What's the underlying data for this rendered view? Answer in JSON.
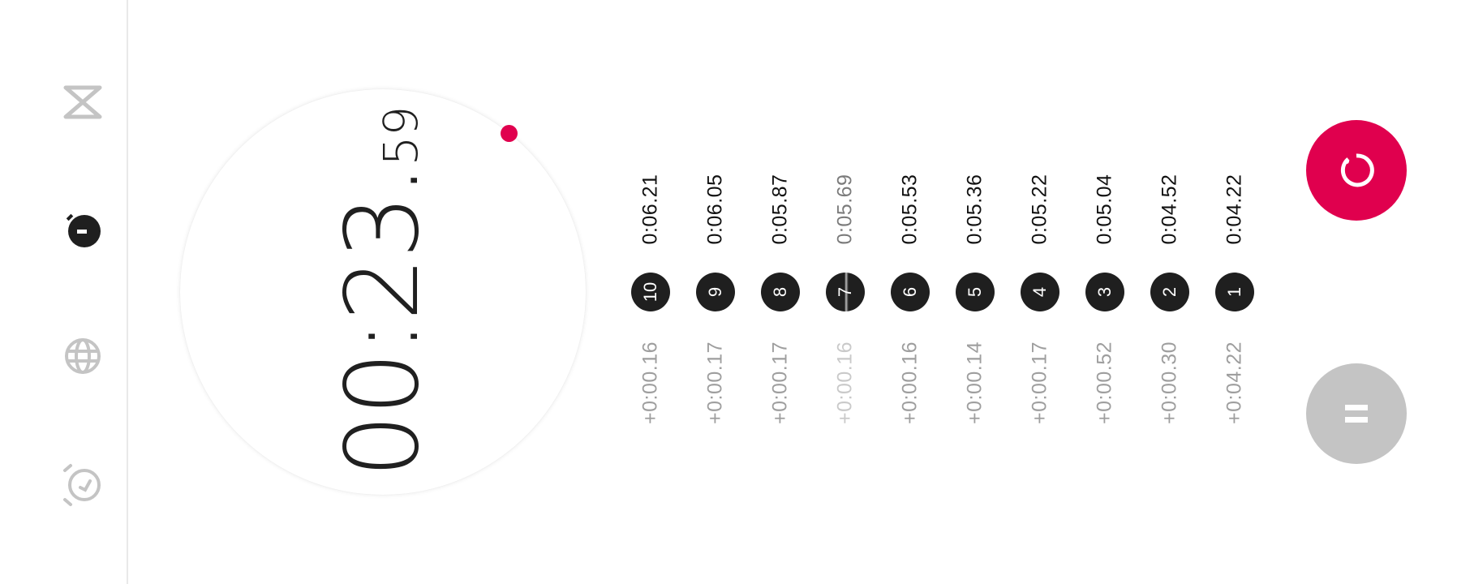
{
  "nav": {
    "items": [
      {
        "name": "timer",
        "icon": "hourglass-icon",
        "active": false
      },
      {
        "name": "stopwatch",
        "icon": "stopwatch-icon",
        "active": true
      },
      {
        "name": "clock",
        "icon": "globe-icon",
        "active": false
      },
      {
        "name": "alarm",
        "icon": "alarm-clock-icon",
        "active": false
      }
    ]
  },
  "stopwatch": {
    "time_main": "00:23.",
    "time_fraction": "59"
  },
  "laps": [
    {
      "number": "10",
      "total": "0:06.21",
      "delta": "+0:00.16"
    },
    {
      "number": "9",
      "total": "0:06.05",
      "delta": "+0:00.17"
    },
    {
      "number": "8",
      "total": "0:05.87",
      "delta": "+0:00.17"
    },
    {
      "number": "7",
      "total": "0:05.69",
      "delta": "+0:00.16"
    },
    {
      "number": "6",
      "total": "0:05.53",
      "delta": "+0:00.16"
    },
    {
      "number": "5",
      "total": "0:05.36",
      "delta": "+0:00.14"
    },
    {
      "number": "4",
      "total": "0:05.22",
      "delta": "+0:00.17"
    },
    {
      "number": "3",
      "total": "0:05.04",
      "delta": "+0:00.52"
    },
    {
      "number": "2",
      "total": "0:04.52",
      "delta": "+0:00.30"
    },
    {
      "number": "1",
      "total": "0:04.22",
      "delta": "+0:04.22"
    }
  ],
  "actions": {
    "reset_icon": "reset-icon",
    "pause_icon": "pause-icon"
  },
  "colors": {
    "accent": "#e0004e",
    "badge": "#1f1f1f",
    "inactive_icon": "#c4c4c4",
    "active_icon": "#1f1f1f"
  }
}
